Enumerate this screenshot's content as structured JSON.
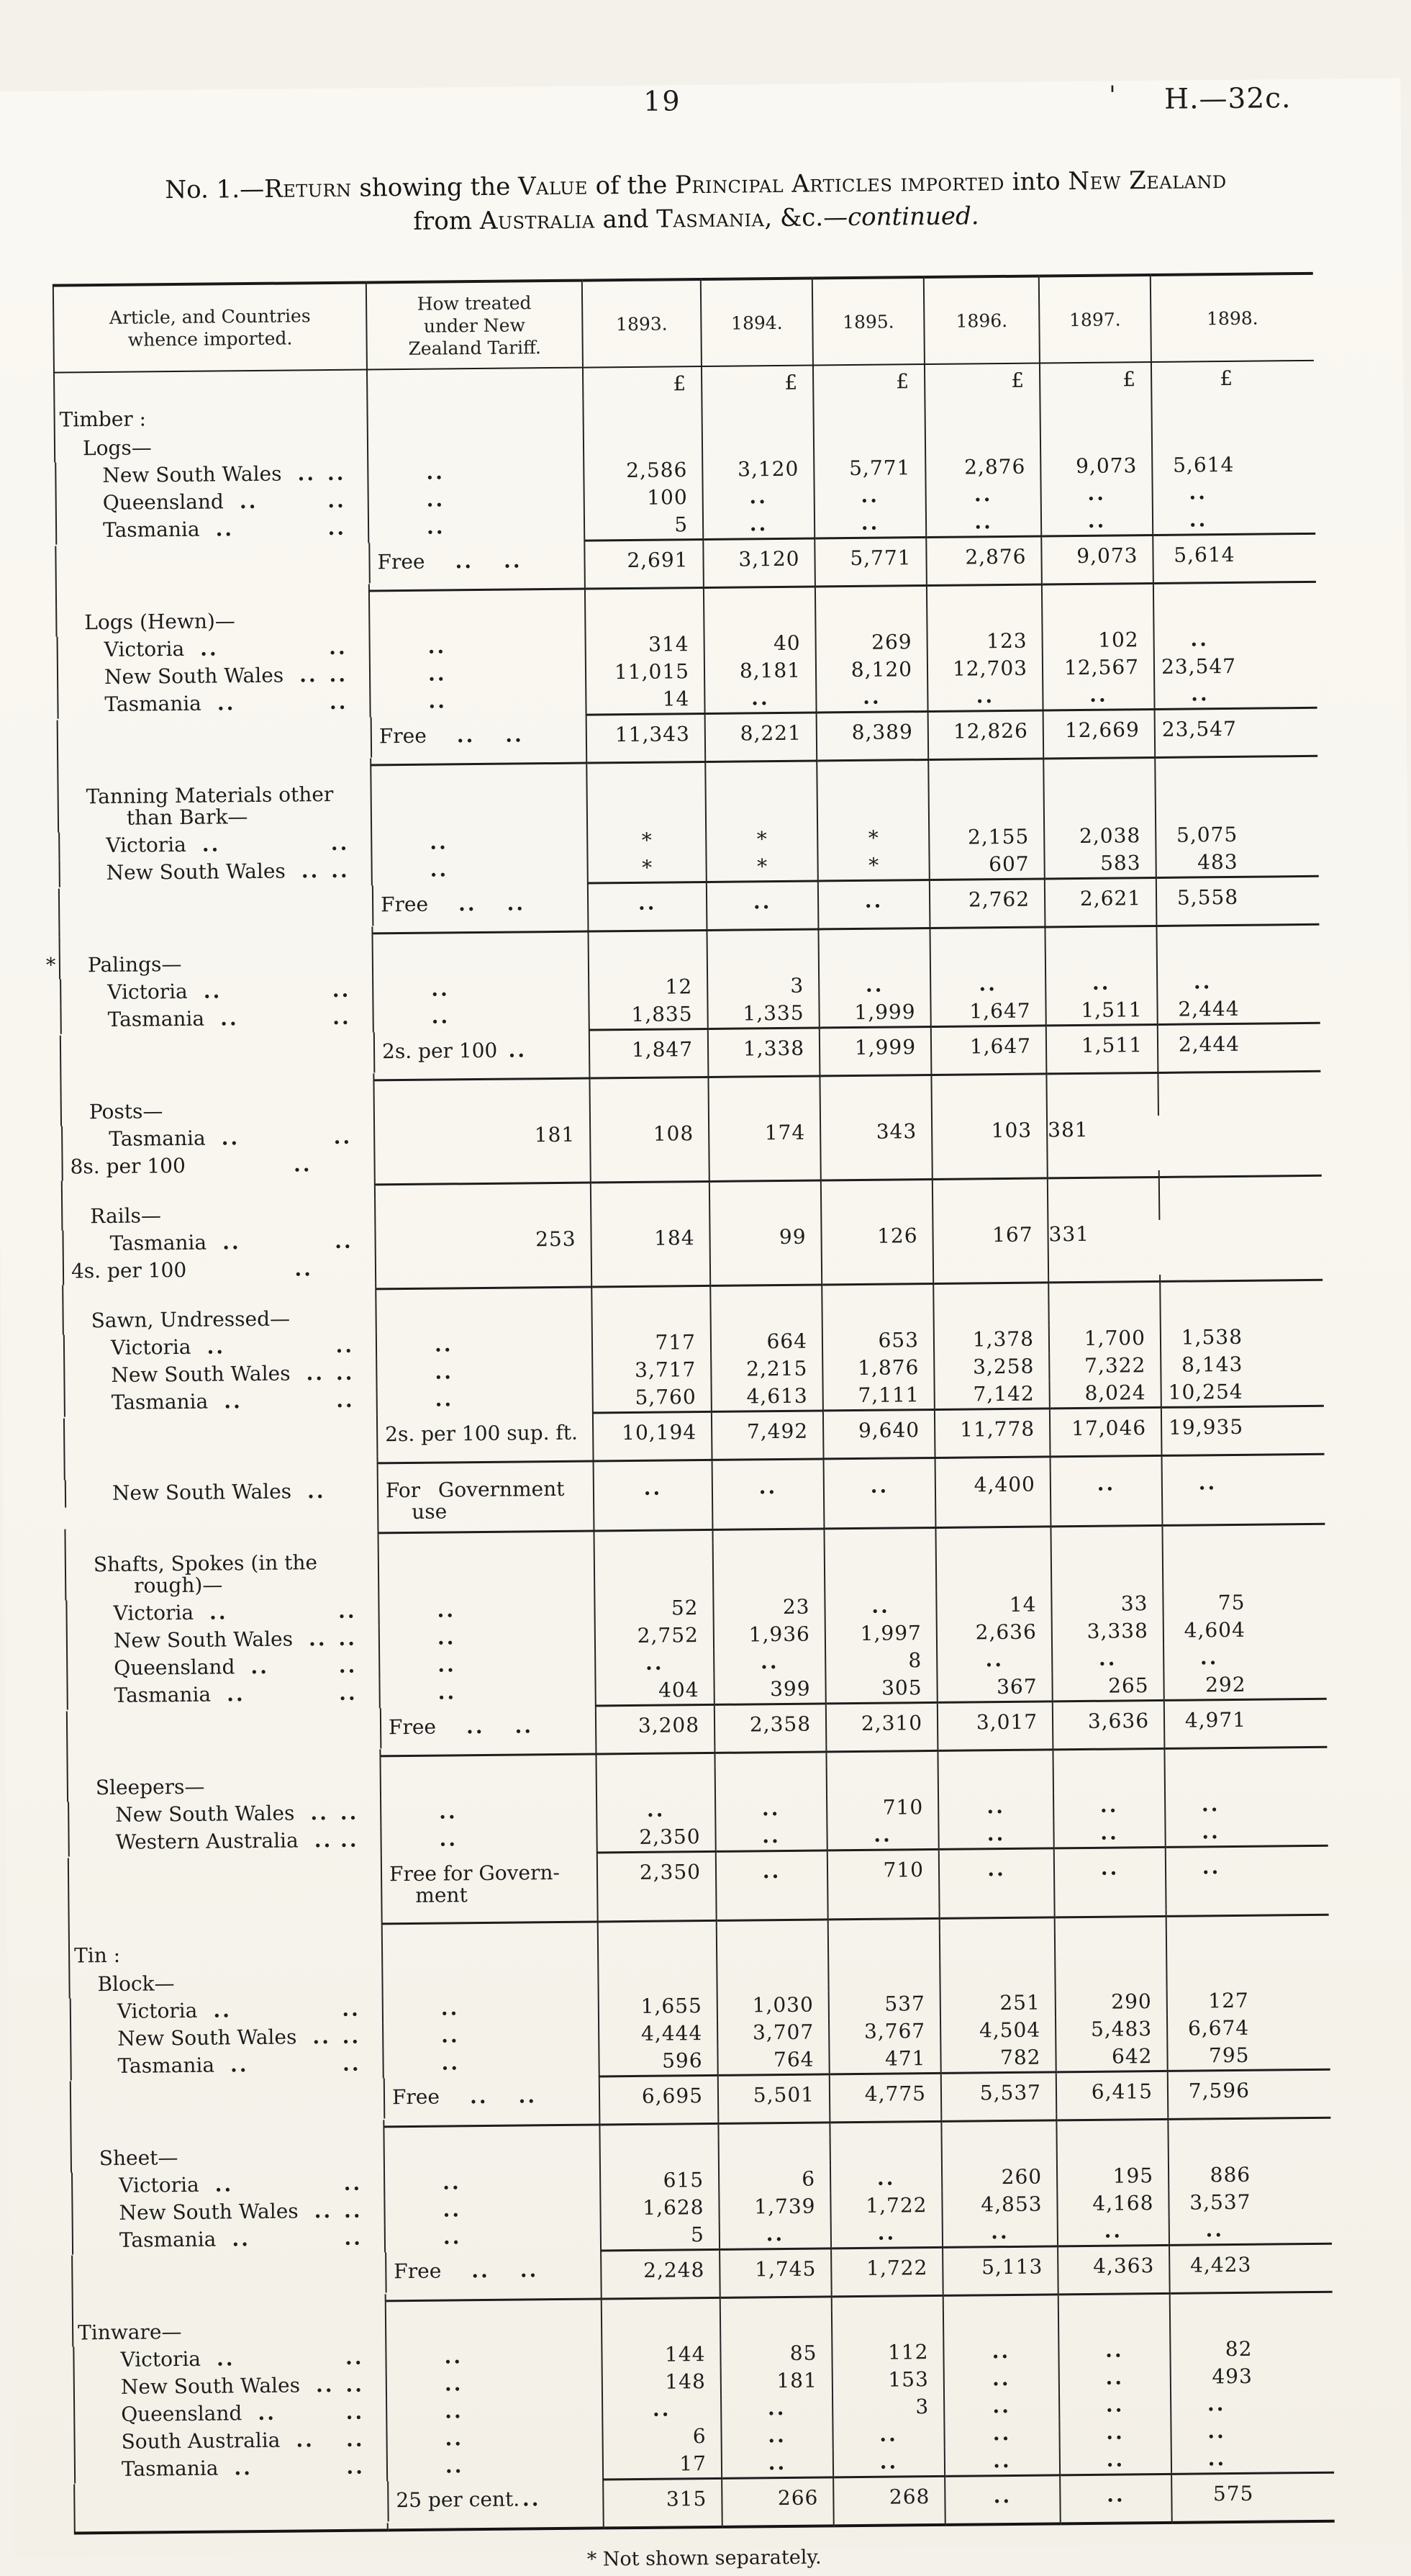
{
  "page": {
    "number": "19",
    "doc_ref": "H.—32c.",
    "stray_mark": "'",
    "footnote": "* Not shown separately.",
    "title_lines": [
      {
        "segments": [
          {
            "text": "No. 1.—",
            "style": "plain"
          },
          {
            "text": "Return",
            "style": "sc"
          },
          {
            "text": " showing the ",
            "style": "plain"
          },
          {
            "text": "Value",
            "style": "sc"
          },
          {
            "text": " of the ",
            "style": "plain"
          },
          {
            "text": "Principal Articles imported",
            "style": "sc"
          },
          {
            "text": " into ",
            "style": "plain"
          },
          {
            "text": "New Zealand",
            "style": "sc"
          }
        ]
      },
      {
        "segments": [
          {
            "text": "from ",
            "style": "plain"
          },
          {
            "text": "Australia",
            "style": "sc"
          },
          {
            "text": " and ",
            "style": "plain"
          },
          {
            "text": "Tasmania",
            "style": "sc"
          },
          {
            "text": ", &c.—",
            "style": "plain"
          },
          {
            "text": "continued.",
            "style": "italic"
          }
        ]
      }
    ]
  },
  "table": {
    "headers": {
      "article": "Article, and Countries whence imported.",
      "tariff": "How treated under New Zealand Tariff.",
      "years": [
        "1893.",
        "1894.",
        "1895.",
        "1896.",
        "1897.",
        "1898."
      ]
    },
    "currency_symbol": "£",
    "rows": [
      {
        "t": "cur",
        "v": [
          "£",
          "£",
          "£",
          "£",
          "£",
          "£"
        ]
      },
      {
        "t": "h0",
        "label": "Timber :"
      },
      {
        "t": "h1",
        "label": "Logs—"
      },
      {
        "t": "c",
        "label": "New South Wales",
        "v": [
          "2,586",
          "3,120",
          "5,771",
          "2,876",
          "9,073",
          "5,614"
        ]
      },
      {
        "t": "c",
        "label": "Queensland",
        "v": [
          "100",
          "..",
          "..",
          "..",
          "..",
          ".."
        ]
      },
      {
        "t": "c",
        "label": "Tasmania",
        "v": [
          "5",
          "..",
          "..",
          "..",
          "..",
          ".."
        ]
      },
      {
        "t": "tot",
        "tariff": "Free",
        "dots": 2,
        "v": [
          "2,691",
          "3,120",
          "5,771",
          "2,876",
          "9,073",
          "5,614"
        ],
        "end": true
      },
      {
        "t": "h1",
        "label": "Logs (Hewn)—"
      },
      {
        "t": "c",
        "label": "Victoria",
        "v": [
          "314",
          "40",
          "269",
          "123",
          "102",
          ".."
        ]
      },
      {
        "t": "c",
        "label": "New South Wales",
        "v": [
          "11,015",
          "8,181",
          "8,120",
          "12,703",
          "12,567",
          "23,547"
        ]
      },
      {
        "t": "c",
        "label": "Tasmania",
        "v": [
          "14",
          "..",
          "..",
          "..",
          "..",
          ".."
        ]
      },
      {
        "t": "tot",
        "tariff": "Free",
        "dots": 2,
        "v": [
          "11,343",
          "8,221",
          "8,389",
          "12,826",
          "12,669",
          "23,547"
        ],
        "end": true
      },
      {
        "t": "h1",
        "lines": [
          "Tanning Materials other",
          "than Bark—"
        ]
      },
      {
        "t": "c",
        "label": "Victoria",
        "v": [
          "*",
          "*",
          "*",
          "2,155",
          "2,038",
          "5,075"
        ]
      },
      {
        "t": "c",
        "label": "New South Wales",
        "v": [
          "*",
          "*",
          "*",
          "607",
          "583",
          "483"
        ]
      },
      {
        "t": "tot",
        "tariff": "Free",
        "dots": 2,
        "v": [
          "..",
          "..",
          "..",
          "2,762",
          "2,621",
          "5,558"
        ],
        "end": true
      },
      {
        "t": "h1",
        "label": "Palings—",
        "mark": "*"
      },
      {
        "t": "c",
        "label": "Victoria",
        "v": [
          "12",
          "3",
          "..",
          "..",
          "..",
          ".."
        ]
      },
      {
        "t": "c",
        "label": "Tasmania",
        "v": [
          "1,835",
          "1,335",
          "1,999",
          "1,647",
          "1,511",
          "2,444"
        ]
      },
      {
        "t": "tot",
        "tariff": "2s. per 100",
        "dots": 1,
        "v": [
          "1,847",
          "1,338",
          "1,999",
          "1,647",
          "1,511",
          "2,444"
        ],
        "end": true
      },
      {
        "t": "h1",
        "label": "Posts—"
      },
      {
        "t": "single",
        "label": "Tasmania",
        "tariff": "8s. per 100",
        "dots": 1,
        "v": [
          "181",
          "108",
          "174",
          "343",
          "103",
          "381"
        ],
        "end": true
      },
      {
        "t": "h1",
        "label": "Rails—"
      },
      {
        "t": "single",
        "label": "Tasmania",
        "tariff": "4s. per 100",
        "dots": 1,
        "v": [
          "253",
          "184",
          "99",
          "126",
          "167",
          "331"
        ],
        "end": true
      },
      {
        "t": "h1",
        "label": "Sawn, Undressed—"
      },
      {
        "t": "c",
        "label": "Victoria",
        "v": [
          "717",
          "664",
          "653",
          "1,378",
          "1,700",
          "1,538"
        ]
      },
      {
        "t": "c",
        "label": "New South Wales",
        "v": [
          "3,717",
          "2,215",
          "1,876",
          "3,258",
          "7,322",
          "8,143"
        ]
      },
      {
        "t": "c",
        "label": "Tasmania",
        "v": [
          "5,760",
          "4,613",
          "7,111",
          "7,142",
          "8,024",
          "10,254"
        ]
      },
      {
        "t": "tot",
        "tariff": "2s. per 100 sup. ft.",
        "dots": 0,
        "v": [
          "10,194",
          "7,492",
          "9,640",
          "11,778",
          "17,046",
          "19,935"
        ],
        "end": true
      },
      {
        "t": "single",
        "label": "New South Wales",
        "ldots": 1,
        "tariff_lines": [
          "For Government",
          "use"
        ],
        "tjust": true,
        "dots": 0,
        "v": [
          "..",
          "..",
          "..",
          "4,400",
          "..",
          ".."
        ],
        "end": true
      },
      {
        "t": "h1",
        "lines": [
          "Shafts, Spokes (in the",
          "rough)—"
        ]
      },
      {
        "t": "c",
        "label": "Victoria",
        "v": [
          "52",
          "23",
          "..",
          "14",
          "33",
          "75"
        ]
      },
      {
        "t": "c",
        "label": "New South Wales",
        "v": [
          "2,752",
          "1,936",
          "1,997",
          "2,636",
          "3,338",
          "4,604"
        ]
      },
      {
        "t": "c",
        "label": "Queensland",
        "v": [
          "..",
          "..",
          "8",
          "..",
          "..",
          ".."
        ]
      },
      {
        "t": "c",
        "label": "Tasmania",
        "v": [
          "404",
          "399",
          "305",
          "367",
          "265",
          "292"
        ]
      },
      {
        "t": "tot",
        "tariff": "Free",
        "dots": 2,
        "v": [
          "3,208",
          "2,358",
          "2,310",
          "3,017",
          "3,636",
          "4,971"
        ],
        "end": true
      },
      {
        "t": "h1",
        "label": "Sleepers—"
      },
      {
        "t": "c",
        "label": "New South Wales",
        "v": [
          "..",
          "..",
          "710",
          "..",
          "..",
          ".."
        ]
      },
      {
        "t": "c",
        "label": "Western Australia",
        "v": [
          "2,350",
          "..",
          "..",
          "..",
          "..",
          ".."
        ]
      },
      {
        "t": "tot",
        "tariff_lines": [
          "Free for Govern-",
          "ment"
        ],
        "dots": 0,
        "v": [
          "2,350",
          "..",
          "710",
          "..",
          "..",
          ".."
        ],
        "end": true
      },
      {
        "t": "h0",
        "label": "Tin :"
      },
      {
        "t": "h1",
        "label": "Block—"
      },
      {
        "t": "c",
        "label": "Victoria",
        "v": [
          "1,655",
          "1,030",
          "537",
          "251",
          "290",
          "127"
        ]
      },
      {
        "t": "c",
        "label": "New South Wales",
        "v": [
          "4,444",
          "3,707",
          "3,767",
          "4,504",
          "5,483",
          "6,674"
        ]
      },
      {
        "t": "c",
        "label": "Tasmania",
        "v": [
          "596",
          "764",
          "471",
          "782",
          "642",
          "795"
        ]
      },
      {
        "t": "tot",
        "tariff": "Free",
        "dots": 2,
        "v": [
          "6,695",
          "5,501",
          "4,775",
          "5,537",
          "6,415",
          "7,596"
        ],
        "end": true
      },
      {
        "t": "h1",
        "label": "Sheet—"
      },
      {
        "t": "c",
        "label": "Victoria",
        "v": [
          "615",
          "6",
          "..",
          "260",
          "195",
          "886"
        ]
      },
      {
        "t": "c",
        "label": "New South Wales",
        "v": [
          "1,628",
          "1,739",
          "1,722",
          "4,853",
          "4,168",
          "3,537"
        ]
      },
      {
        "t": "c",
        "label": "Tasmania",
        "v": [
          "5",
          "..",
          "..",
          "..",
          "..",
          ".."
        ]
      },
      {
        "t": "tot",
        "tariff": "Free",
        "dots": 2,
        "v": [
          "2,248",
          "1,745",
          "1,722",
          "5,113",
          "4,363",
          "4,423"
        ],
        "end": true
      },
      {
        "t": "h0",
        "label": "Tinware—"
      },
      {
        "t": "c",
        "label": "Victoria",
        "v": [
          "144",
          "85",
          "112",
          "..",
          "..",
          "82"
        ]
      },
      {
        "t": "c",
        "label": "New South Wales",
        "v": [
          "148",
          "181",
          "153",
          "..",
          "..",
          "493"
        ]
      },
      {
        "t": "c",
        "label": "Queensland",
        "v": [
          "..",
          "..",
          "3",
          "..",
          "..",
          ".."
        ]
      },
      {
        "t": "c",
        "label": "South Australia",
        "v": [
          "6",
          "..",
          "..",
          "..",
          "..",
          ".."
        ]
      },
      {
        "t": "c",
        "label": "Tasmania",
        "v": [
          "17",
          "..",
          "..",
          "..",
          "..",
          ".."
        ]
      },
      {
        "t": "tot",
        "tariff": "25 per cent.",
        "dots": 1,
        "v": [
          "315",
          "266",
          "268",
          "..",
          "..",
          "575"
        ],
        "end": true,
        "final": true
      }
    ]
  }
}
